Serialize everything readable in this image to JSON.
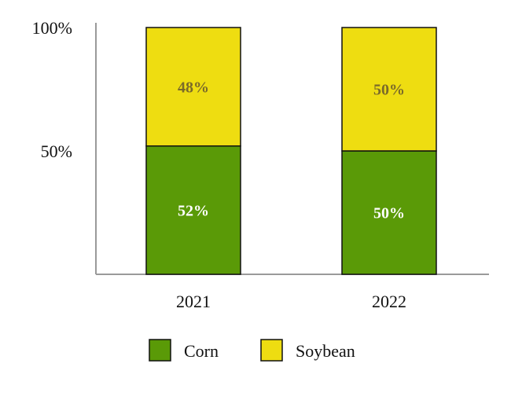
{
  "chart_data": {
    "type": "bar",
    "stacked": true,
    "categories": [
      "2021",
      "2022"
    ],
    "series": [
      {
        "name": "Corn",
        "values": [
          52,
          50
        ],
        "labels": [
          "52%",
          "50%"
        ],
        "color": "#5a9a07",
        "label_color": "#ffffff"
      },
      {
        "name": "Soybean",
        "values": [
          48,
          50
        ],
        "labels": [
          "48%",
          "50%"
        ],
        "color": "#eedd11",
        "label_color": "#7a6a2a"
      }
    ],
    "title": "",
    "xlabel": "",
    "ylabel": "",
    "ylim": [
      0,
      100
    ],
    "yticks": [
      {
        "value": 50,
        "label": "50%"
      },
      {
        "value": 100,
        "label": "100%"
      }
    ],
    "legend_position": "bottom",
    "grid": false
  }
}
